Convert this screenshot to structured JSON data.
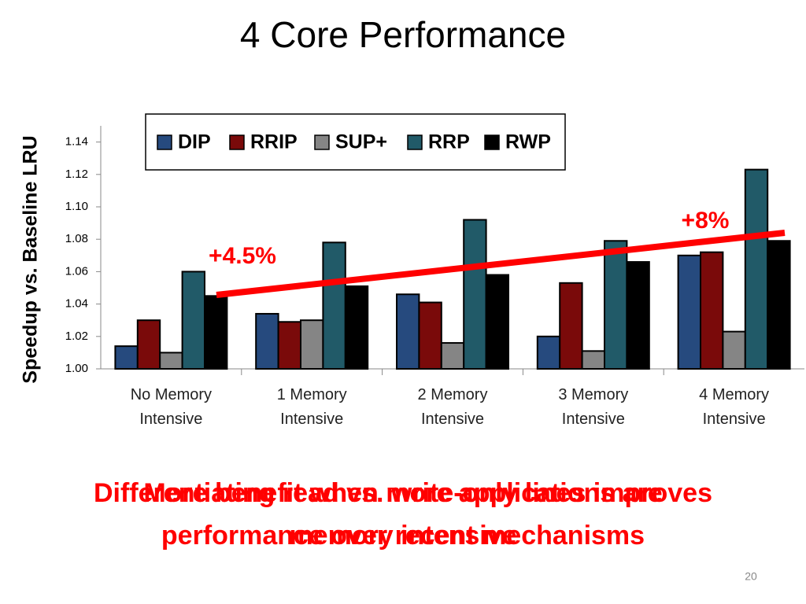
{
  "chart_data": {
    "type": "bar",
    "title": "4 Core Performance",
    "y_label": "Speedup vs. Baseline LRU",
    "categories": [
      "No Memory Intensive",
      "1 Memory Intensive",
      "2 Memory Intensive",
      "3 Memory Intensive",
      "4 Memory Intensive"
    ],
    "series": [
      {
        "name": "DIP",
        "color": "#264a7e",
        "values": [
          1.014,
          1.034,
          1.046,
          1.02,
          1.07
        ]
      },
      {
        "name": "RRIP",
        "color": "#7a0a0a",
        "values": [
          1.03,
          1.029,
          1.041,
          1.053,
          1.072
        ]
      },
      {
        "name": "SUP+",
        "color": "#858585",
        "values": [
          1.01,
          1.03,
          1.016,
          1.011,
          1.023
        ]
      },
      {
        "name": "RRP",
        "color": "#215a68",
        "values": [
          1.06,
          1.078,
          1.092,
          1.079,
          1.123
        ]
      },
      {
        "name": "RWP",
        "color": "#000000",
        "values": [
          1.045,
          1.051,
          1.058,
          1.066,
          1.079
        ]
      }
    ],
    "ylim": [
      1.0,
      1.15
    ],
    "yticks": [
      {
        "value": 1.0,
        "label": "1.00"
      },
      {
        "value": 1.02,
        "label": "1.02"
      },
      {
        "value": 1.04,
        "label": "1.04"
      },
      {
        "value": 1.06,
        "label": "1.06"
      },
      {
        "value": 1.08,
        "label": "1.08"
      },
      {
        "value": 1.1,
        "label": "1.10"
      },
      {
        "value": 1.12,
        "label": "1.12"
      },
      {
        "value": 1.14,
        "label": "1.14"
      }
    ],
    "annotations": [
      "+4.5%",
      "+8%"
    ],
    "legend": "top"
  },
  "captions": [
    "More benefit when more applications are memory intensive",
    "Differentiating read vs. write-only lines improves performance over recent mechanisms"
  ],
  "page_number": "20"
}
